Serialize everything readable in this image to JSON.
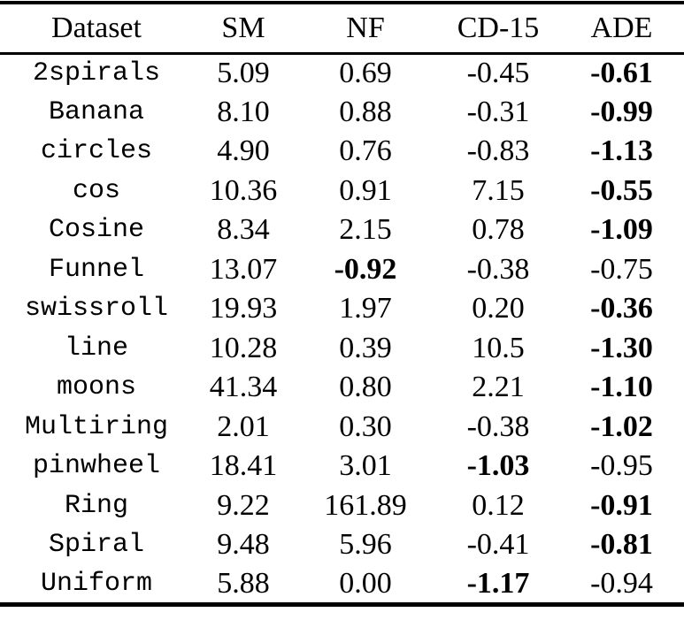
{
  "colors": {
    "background": "#ffffff",
    "text": "#000000",
    "rule": "#000000"
  },
  "chart_data": {
    "type": "table",
    "headers": [
      "Dataset",
      "SM",
      "NF",
      "CD-15",
      "ADE"
    ],
    "rows": [
      {
        "name": "2spirals",
        "values": [
          "5.09",
          "0.69",
          "-0.45",
          "-0.61"
        ],
        "bold_index": 3
      },
      {
        "name": "Banana",
        "values": [
          "8.10",
          "0.88",
          "-0.31",
          "-0.99"
        ],
        "bold_index": 3
      },
      {
        "name": "circles",
        "values": [
          "4.90",
          "0.76",
          "-0.83",
          "-1.13"
        ],
        "bold_index": 3
      },
      {
        "name": "cos",
        "values": [
          "10.36",
          "0.91",
          "7.15",
          "-0.55"
        ],
        "bold_index": 3
      },
      {
        "name": "Cosine",
        "values": [
          "8.34",
          "2.15",
          "0.78",
          "-1.09"
        ],
        "bold_index": 3
      },
      {
        "name": "Funnel",
        "values": [
          "13.07",
          "-0.92",
          "-0.38",
          "-0.75"
        ],
        "bold_index": 1
      },
      {
        "name": "swissroll",
        "values": [
          "19.93",
          "1.97",
          "0.20",
          "-0.36"
        ],
        "bold_index": 3
      },
      {
        "name": "line",
        "values": [
          "10.28",
          "0.39",
          "10.5",
          "-1.30"
        ],
        "bold_index": 3
      },
      {
        "name": "moons",
        "values": [
          "41.34",
          "0.80",
          "2.21",
          "-1.10"
        ],
        "bold_index": 3
      },
      {
        "name": "Multiring",
        "values": [
          "2.01",
          "0.30",
          "-0.38",
          "-1.02"
        ],
        "bold_index": 3
      },
      {
        "name": "pinwheel",
        "values": [
          "18.41",
          "3.01",
          "-1.03",
          "-0.95"
        ],
        "bold_index": 2
      },
      {
        "name": "Ring",
        "values": [
          "9.22",
          "161.89",
          "0.12",
          "-0.91"
        ],
        "bold_index": 3
      },
      {
        "name": "Spiral",
        "values": [
          "9.48",
          "5.96",
          "-0.41",
          "-0.81"
        ],
        "bold_index": 3
      },
      {
        "name": "Uniform",
        "values": [
          "5.88",
          "0.00",
          "-1.17",
          "-0.94"
        ],
        "bold_index": 2
      }
    ]
  }
}
